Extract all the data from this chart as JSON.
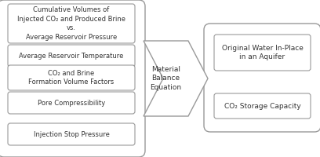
{
  "bg_color": "#ffffff",
  "border_color": "#999999",
  "text_color": "#333333",
  "left_inputs": [
    "Cumulative Volumes of\nInjected CO₂ and Produced Brine\nvs.\nAverage Reservoir Pressure",
    "Average Reservoir Temperature",
    "CO₂ and Brine\nFormation Volume Factors",
    "Pore Compressibility",
    "Injection Stop Pressure"
  ],
  "center_label": "Material\nBalance\nEquation",
  "right_outputs": [
    "Original Water In-Place\nin an Aquifer",
    "CO₂ Storage Capacity"
  ],
  "figsize": [
    4.08,
    2.0
  ],
  "dpi": 100
}
